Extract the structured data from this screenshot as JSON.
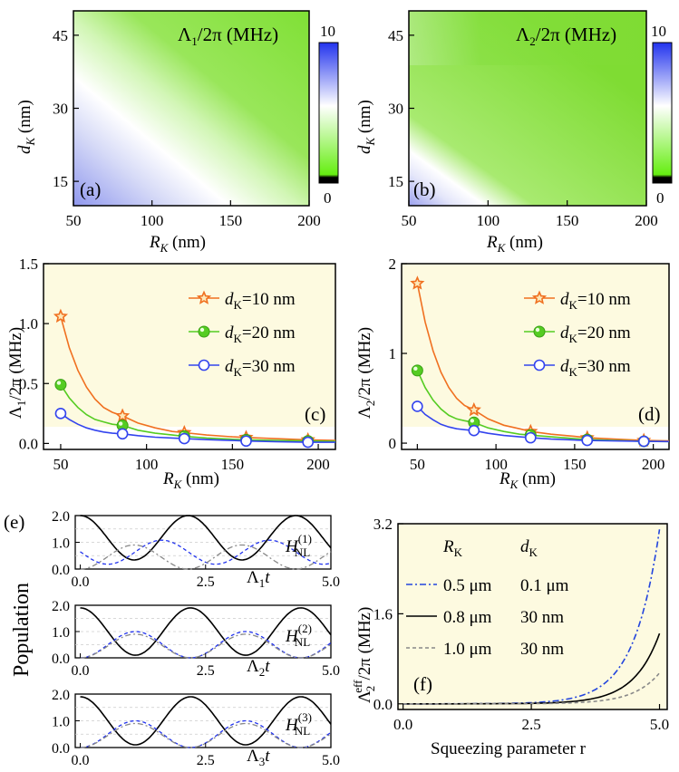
{
  "chart_data": [
    {
      "type": "heatmap",
      "panel": "(a)",
      "title": "Λ1/2π (MHz)",
      "title_main": "Λ",
      "title_sub": "1",
      "title_rest": "/2π (MHz)",
      "xlabel_main": "R",
      "xlabel_sub": "K",
      "xlabel_rest": " (nm)",
      "ylabel_main": "d",
      "ylabel_sub": "K",
      "ylabel_rest": " (nm)",
      "x_ticks": [
        "50",
        "100",
        "150",
        "200"
      ],
      "y_ticks": [
        "15",
        "30",
        "45"
      ],
      "xlim": [
        50,
        200
      ],
      "ylim": [
        10,
        50
      ],
      "colorbar": {
        "min": "0",
        "max": "10",
        "colors": [
          "#000000",
          "#66ee11",
          "#ffffff",
          "#2233ee"
        ]
      }
    },
    {
      "type": "heatmap",
      "panel": "(b)",
      "title": "Λ2/2π (MHz)",
      "title_main": "Λ",
      "title_sub": "2",
      "title_rest": "/2π (MHz)",
      "xlabel_main": "R",
      "xlabel_sub": "K",
      "xlabel_rest": " (nm)",
      "ylabel_main": "d",
      "ylabel_sub": "K",
      "ylabel_rest": " (nm)",
      "x_ticks": [
        "50",
        "100",
        "150",
        "200"
      ],
      "y_ticks": [
        "15",
        "30",
        "45"
      ],
      "xlim": [
        50,
        200
      ],
      "ylim": [
        10,
        50
      ],
      "colorbar": {
        "min": "0",
        "max": "10",
        "colors": [
          "#000000",
          "#66ee11",
          "#ffffff",
          "#2233ee"
        ]
      }
    },
    {
      "type": "line",
      "panel": "(c)",
      "xlabel_main": "R",
      "xlabel_sub": "K",
      "xlabel_rest": " (nm)",
      "ylabel_main": "Λ",
      "ylabel_sub": "1",
      "ylabel_rest": "/2π (MHz)",
      "xlim": [
        40,
        210
      ],
      "ylim": [
        -0.05,
        1.5
      ],
      "x_ticks": [
        "50",
        "100",
        "150",
        "200"
      ],
      "y_ticks": [
        "0.0",
        "0.5",
        "1.0",
        "1.5"
      ],
      "series": [
        {
          "name_main": "d",
          "name_sub": "K",
          "name_rest": "=10 nm",
          "marker": "star",
          "color": "#f07020",
          "x": [
            50,
            86,
            122,
            158,
            194
          ],
          "y": [
            1.06,
            0.23,
            0.09,
            0.05,
            0.03
          ],
          "curve_x": [
            50,
            55,
            60,
            65,
            70,
            75,
            80,
            86,
            95,
            105,
            115,
            122,
            135,
            150,
            158,
            175,
            194,
            210
          ],
          "curve_y": [
            1.06,
            0.8,
            0.61,
            0.47,
            0.37,
            0.3,
            0.26,
            0.23,
            0.17,
            0.13,
            0.1,
            0.09,
            0.07,
            0.055,
            0.05,
            0.04,
            0.03,
            0.025
          ]
        },
        {
          "name_main": "d",
          "name_sub": "K",
          "name_rest": "=20 nm",
          "marker": "ball",
          "color": "#55cc22",
          "x": [
            50,
            86,
            122,
            158,
            194
          ],
          "y": [
            0.49,
            0.15,
            0.06,
            0.03,
            0.02
          ],
          "curve_x": [
            50,
            55,
            60,
            65,
            70,
            75,
            80,
            86,
            95,
            105,
            115,
            122,
            135,
            150,
            158,
            175,
            194,
            210
          ],
          "curve_y": [
            0.49,
            0.38,
            0.3,
            0.24,
            0.2,
            0.18,
            0.16,
            0.15,
            0.11,
            0.085,
            0.07,
            0.06,
            0.045,
            0.035,
            0.03,
            0.025,
            0.02,
            0.018
          ]
        },
        {
          "name_main": "d",
          "name_sub": "K",
          "name_rest": "=30 nm",
          "marker": "circle",
          "color": "#3344ee",
          "x": [
            50,
            86,
            122,
            158,
            194
          ],
          "y": [
            0.25,
            0.08,
            0.04,
            0.02,
            0.01
          ],
          "curve_x": [
            50,
            55,
            60,
            65,
            70,
            75,
            80,
            86,
            95,
            105,
            115,
            122,
            135,
            150,
            158,
            175,
            194,
            210
          ],
          "curve_y": [
            0.25,
            0.2,
            0.16,
            0.13,
            0.11,
            0.095,
            0.085,
            0.08,
            0.065,
            0.052,
            0.045,
            0.04,
            0.032,
            0.025,
            0.02,
            0.015,
            0.01,
            0.01
          ]
        }
      ]
    },
    {
      "type": "line",
      "panel": "(d)",
      "xlabel_main": "R",
      "xlabel_sub": "K",
      "xlabel_rest": " (nm)",
      "ylabel_main": "Λ",
      "ylabel_sub": "2",
      "ylabel_rest": "/2π (MHz)",
      "xlim": [
        40,
        210
      ],
      "ylim": [
        -0.07,
        2.0
      ],
      "x_ticks": [
        "50",
        "100",
        "150",
        "200"
      ],
      "y_ticks": [
        "0",
        "1",
        "2"
      ],
      "series": [
        {
          "name_main": "d",
          "name_sub": "K",
          "name_rest": "=10 nm",
          "marker": "star",
          "color": "#f07020",
          "x": [
            50,
            86,
            122,
            158,
            194
          ],
          "y": [
            1.78,
            0.37,
            0.13,
            0.06,
            0.03
          ],
          "curve_x": [
            50,
            55,
            60,
            65,
            70,
            75,
            80,
            86,
            95,
            105,
            115,
            122,
            135,
            150,
            158,
            175,
            194,
            210
          ],
          "curve_y": [
            1.78,
            1.35,
            1.03,
            0.79,
            0.62,
            0.5,
            0.42,
            0.37,
            0.27,
            0.2,
            0.16,
            0.13,
            0.1,
            0.075,
            0.06,
            0.045,
            0.03,
            0.025
          ]
        },
        {
          "name_main": "d",
          "name_sub": "K",
          "name_rest": "=20 nm",
          "marker": "ball",
          "color": "#55cc22",
          "x": [
            50,
            86,
            122,
            158,
            194
          ],
          "y": [
            0.81,
            0.23,
            0.09,
            0.04,
            0.02
          ],
          "curve_x": [
            50,
            55,
            60,
            65,
            70,
            75,
            80,
            86,
            95,
            105,
            115,
            122,
            135,
            150,
            158,
            175,
            194,
            210
          ],
          "curve_y": [
            0.81,
            0.62,
            0.48,
            0.38,
            0.31,
            0.27,
            0.25,
            0.23,
            0.17,
            0.13,
            0.1,
            0.09,
            0.07,
            0.05,
            0.04,
            0.03,
            0.02,
            0.018
          ]
        },
        {
          "name_main": "d",
          "name_sub": "K",
          "name_rest": "=30 nm",
          "marker": "circle",
          "color": "#3344ee",
          "x": [
            50,
            86,
            122,
            158,
            194
          ],
          "y": [
            0.41,
            0.14,
            0.06,
            0.03,
            0.02
          ],
          "curve_x": [
            50,
            55,
            60,
            65,
            70,
            75,
            80,
            86,
            95,
            105,
            115,
            122,
            135,
            150,
            158,
            175,
            194,
            210
          ],
          "curve_y": [
            0.41,
            0.32,
            0.26,
            0.21,
            0.18,
            0.16,
            0.15,
            0.14,
            0.11,
            0.085,
            0.07,
            0.06,
            0.045,
            0.035,
            0.03,
            0.025,
            0.02,
            0.018
          ]
        }
      ]
    },
    {
      "type": "line",
      "panel": "(e)",
      "ylabel": "Population",
      "xlim": [
        -0.1,
        5.0
      ],
      "ylim": [
        0.0,
        2.0
      ],
      "x_ticks": [
        "0.0",
        "2.5",
        "5.0"
      ],
      "y_ticks": [
        "0.0",
        "1.0",
        "2.0"
      ],
      "subplots": [
        {
          "label_main": "H",
          "label_sub": "NL",
          "label_sup": "(1)",
          "xlabel_main": "Λ",
          "xlabel_sub": "1",
          "xlabel_rest": "t",
          "series": [
            {
              "name": "black",
              "color": "#000000",
              "dash": "",
              "offset": 1.17,
              "amp": 0.83,
              "period": 2.15,
              "phase": 0.0
            },
            {
              "name": "blue",
              "color": "#2233ee",
              "dash": "4,3",
              "offset": 0.58,
              "amp": 0.42,
              "period": 2.15,
              "phase": 0.0,
              "negate": false,
              "shape": "dip"
            },
            {
              "name": "gray",
              "color": "#888888",
              "dash": "6,3,2,3",
              "offset": 0.45,
              "amp": 0.45,
              "period": 2.15,
              "phase": 1.075
            }
          ]
        },
        {
          "label_main": "H",
          "label_sub": "NL",
          "label_sup": "(2)",
          "xlabel_main": "Λ",
          "xlabel_sub": "2",
          "xlabel_rest": "t",
          "series": [
            {
              "name": "black",
              "color": "#000000",
              "dash": "",
              "offset": 1.0,
              "amp": 0.9,
              "period": 2.2,
              "phase": 0.0
            },
            {
              "name": "blue",
              "color": "#2233ee",
              "dash": "4,3",
              "offset": 0.5,
              "amp": 0.5,
              "period": 2.2,
              "phase": 1.1
            },
            {
              "name": "gray",
              "color": "#888888",
              "dash": "6,3,2,3",
              "offset": 0.45,
              "amp": 0.45,
              "period": 2.2,
              "phase": 1.1
            }
          ]
        },
        {
          "label_main": "H",
          "label_sub": "NL",
          "label_sup": "(3)",
          "xlabel_main": "Λ",
          "xlabel_sub": "3",
          "xlabel_rest": "t",
          "series": [
            {
              "name": "black",
              "color": "#000000",
              "dash": "",
              "offset": 1.0,
              "amp": 0.9,
              "period": 2.2,
              "phase": 0.0
            },
            {
              "name": "blue",
              "color": "#2233ee",
              "dash": "4,3",
              "offset": 0.5,
              "amp": 0.5,
              "period": 2.2,
              "phase": 1.1
            },
            {
              "name": "gray",
              "color": "#888888",
              "dash": "6,3,2,3",
              "offset": 0.45,
              "amp": 0.45,
              "period": 2.2,
              "phase": 1.1
            }
          ]
        }
      ]
    },
    {
      "type": "line",
      "panel": "(f)",
      "xlabel": "Squeezing parameter r",
      "ylabel_main": "Λ",
      "ylabel_sub": "2",
      "ylabel_sup": "eff",
      "ylabel_rest": "/2π (MHz)",
      "xlim": [
        -0.1,
        5.15
      ],
      "ylim": [
        -0.1,
        3.2
      ],
      "x_ticks": [
        "0.0",
        "2.5",
        "5.0"
      ],
      "y_ticks": [
        "0.0",
        "1.6",
        "3.2"
      ],
      "legend_header": {
        "col1_main": "R",
        "col1_sub": "K",
        "col2_main": "d",
        "col2_sub": "K"
      },
      "series": [
        {
          "col1": "0.5 μm",
          "col2": "0.1 μm",
          "color": "#2244dd",
          "dash": "7,3,2,3",
          "scale": 3.1
        },
        {
          "col1": "0.8 μm",
          "col2": "30 nm",
          "color": "#000000",
          "dash": "",
          "scale": 1.25
        },
        {
          "col1": "1.0 μm",
          "col2": "30 nm",
          "color": "#888888",
          "dash": "4,3",
          "scale": 0.55
        }
      ]
    }
  ]
}
